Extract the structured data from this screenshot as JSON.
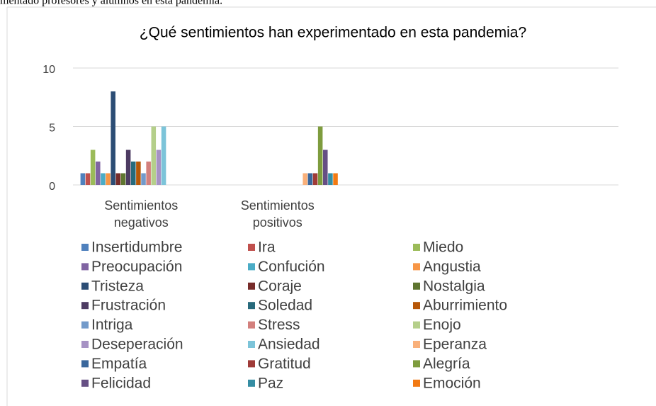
{
  "doc_text": "mentado profesores y alumnos en esta pandemia.",
  "chart_data": {
    "type": "bar",
    "title": "¿Qué sentimientos han experimentado en esta pandemia?",
    "categories": [
      "Sentimientos negativos",
      "Sentimientos positivos",
      null,
      null
    ],
    "ylim": [
      0,
      10
    ],
    "yticks": [
      0,
      5,
      10
    ],
    "grid": true,
    "legend": "bottom",
    "series": [
      {
        "name": "Insertidumbre",
        "color": "#4f81bd",
        "values": [
          1,
          null,
          null,
          null
        ]
      },
      {
        "name": "Ira",
        "color": "#c0504d",
        "values": [
          1,
          null,
          null,
          null
        ]
      },
      {
        "name": "Miedo",
        "color": "#9bbb59",
        "values": [
          3,
          null,
          null,
          null
        ]
      },
      {
        "name": "Preocupación",
        "color": "#8064a2",
        "values": [
          2,
          null,
          null,
          null
        ]
      },
      {
        "name": "Confución",
        "color": "#4bacc6",
        "values": [
          1,
          null,
          null,
          null
        ]
      },
      {
        "name": "Angustia",
        "color": "#f79646",
        "values": [
          1,
          null,
          null,
          null
        ]
      },
      {
        "name": "Tristeza",
        "color": "#2c4d75",
        "values": [
          8,
          null,
          null,
          null
        ]
      },
      {
        "name": "Coraje",
        "color": "#772c2a",
        "values": [
          1,
          null,
          null,
          null
        ]
      },
      {
        "name": "Nostalgia",
        "color": "#5f7530",
        "values": [
          1,
          null,
          null,
          null
        ]
      },
      {
        "name": "Frustración",
        "color": "#4d3b62",
        "values": [
          3,
          null,
          null,
          null
        ]
      },
      {
        "name": "Soledad",
        "color": "#276a7c",
        "values": [
          2,
          null,
          null,
          null
        ]
      },
      {
        "name": "Aburrimiento",
        "color": "#b65708",
        "values": [
          2,
          null,
          null,
          null
        ]
      },
      {
        "name": "Intriga",
        "color": "#729aca",
        "values": [
          1,
          null,
          null,
          null
        ]
      },
      {
        "name": "Stress",
        "color": "#d3807d",
        "values": [
          2,
          null,
          null,
          null
        ]
      },
      {
        "name": "Enojo",
        "color": "#b5cf8a",
        "values": [
          5,
          null,
          null,
          null
        ]
      },
      {
        "name": "Deseperación",
        "color": "#a692c4",
        "values": [
          3,
          null,
          null,
          null
        ]
      },
      {
        "name": "Ansiedad",
        "color": "#7cc4d9",
        "values": [
          5,
          null,
          null,
          null
        ]
      },
      {
        "name": "Eperanza",
        "color": "#f9b07a",
        "values": [
          null,
          1,
          null,
          null
        ]
      },
      {
        "name": "Empatía",
        "color": "#3a679c",
        "values": [
          null,
          1,
          null,
          null
        ]
      },
      {
        "name": "Gratitud",
        "color": "#9f3b38",
        "values": [
          null,
          1,
          null,
          null
        ]
      },
      {
        "name": "Alegría",
        "color": "#7e9c3e",
        "values": [
          null,
          5,
          null,
          null
        ]
      },
      {
        "name": "Felicidad",
        "color": "#664f84",
        "values": [
          null,
          3,
          null,
          null
        ]
      },
      {
        "name": "Paz",
        "color": "#358da3",
        "values": [
          null,
          1,
          null,
          null
        ]
      },
      {
        "name": "Emoción",
        "color": "#f27a13",
        "values": [
          null,
          1,
          null,
          null
        ]
      }
    ]
  }
}
